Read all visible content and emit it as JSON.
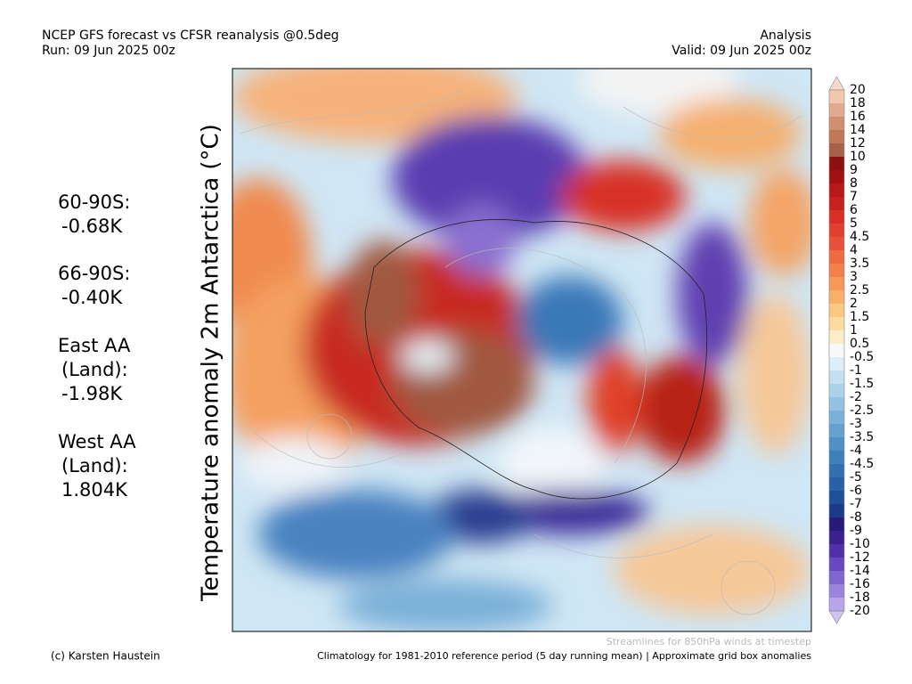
{
  "header": {
    "title": "NCEP GFS forecast vs CFSR reanalysis @0.5deg",
    "run": "Run: 09 Jun 2025 00z",
    "mode": "Analysis",
    "valid": "Valid: 09 Jun 2025 00z"
  },
  "stats": [
    [
      "60-90S:",
      "-0.68K"
    ],
    [
      "66-90S:",
      "-0.40K"
    ],
    [
      "East AA",
      "(Land):",
      "-1.98K"
    ],
    [
      "West AA",
      "(Land):",
      "1.804K"
    ]
  ],
  "map": {
    "axis_title": "Temperature anomaly 2m Antarctica (°C)"
  },
  "colorbar": {
    "labels": [
      "20",
      "18",
      "16",
      "14",
      "12",
      "10",
      "9",
      "8",
      "7",
      "6",
      "5",
      "4.5",
      "4",
      "3.5",
      "3",
      "2.5",
      "2",
      "1.5",
      "1",
      "0.5",
      "-0.5",
      "-1",
      "-1.5",
      "-2",
      "-2.5",
      "-3",
      "-3.5",
      "-4",
      "-4.5",
      "-5",
      "-6",
      "-7",
      "-8",
      "-9",
      "-10",
      "-12",
      "-14",
      "-16",
      "-18",
      "-20"
    ],
    "colors": [
      "#f0c8b0",
      "#e0aa90",
      "#d09070",
      "#c07858",
      "#a86048",
      "#8c1010",
      "#a01010",
      "#b81818",
      "#c82020",
      "#d83028",
      "#e04030",
      "#e85038",
      "#ee6a40",
      "#f28048",
      "#f59858",
      "#f8b068",
      "#fac880",
      "#fcdca0",
      "#fdeec8",
      "#f8f8f8",
      "#dceef8",
      "#c4e0f0",
      "#acd2ea",
      "#94c2e2",
      "#7cb2d8",
      "#66a2ce",
      "#5090c4",
      "#4080ba",
      "#3470b0",
      "#2a60a4",
      "#205098",
      "#1a3c88",
      "#281a78",
      "#3c2090",
      "#5030a8",
      "#6848c0",
      "#8064d0",
      "#9c84dc",
      "#b8a4e8"
    ],
    "top_color": "#f8d8c8",
    "bottom_color": "#d0c4f0"
  },
  "footer": {
    "credit": "(c) Karsten Haustein",
    "streamlines": "Streamlines for 850hPa winds at timestep",
    "note": "Climatology for 1981-2010 reference period (5 day running mean) | Approximate grid box anomalies"
  }
}
